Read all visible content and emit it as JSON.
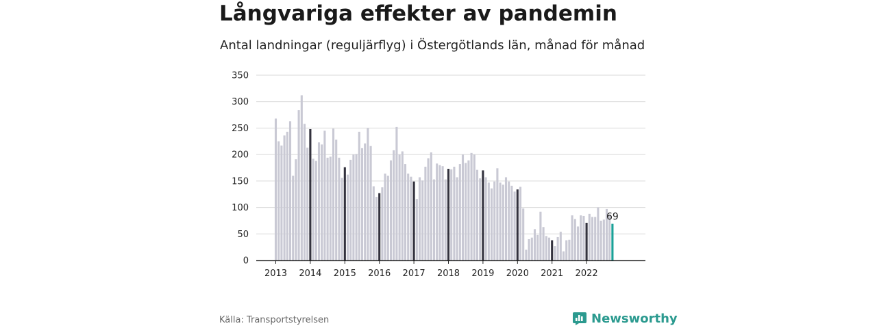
{
  "title": "Långvariga effekter av pandemin",
  "subtitle": "Antal landningar (reguljärflyg) i Östergötlands län, månad för månad",
  "source": "Källa: Transportstyrelsen",
  "brand": "Newsworthy",
  "colors": {
    "bar": "#c9c9d4",
    "january": "#33323e",
    "highlight": "#1aa198",
    "grid": "#d9d9d9",
    "brand": "#2b9a8f"
  },
  "chart_data": {
    "type": "bar",
    "ylim": [
      0,
      350
    ],
    "yticks": [
      0,
      50,
      100,
      150,
      200,
      250,
      300,
      350
    ],
    "xticks": [
      "2013",
      "2014",
      "2015",
      "2016",
      "2017",
      "2018",
      "2019",
      "2020",
      "2021",
      "2022"
    ],
    "start": "2013-01",
    "dark_bars": "january",
    "highlight_last": true,
    "last_label": "69",
    "values": [
      268,
      225,
      217,
      236,
      243,
      263,
      160,
      191,
      284,
      312,
      258,
      213,
      248,
      192,
      188,
      223,
      219,
      245,
      194,
      196,
      249,
      228,
      194,
      156,
      176,
      162,
      190,
      200,
      201,
      243,
      212,
      221,
      250,
      216,
      140,
      120,
      127,
      138,
      164,
      160,
      189,
      208,
      252,
      200,
      206,
      182,
      164,
      158,
      149,
      116,
      157,
      151,
      177,
      193,
      204,
      153,
      183,
      180,
      178,
      153,
      173,
      172,
      177,
      157,
      182,
      200,
      184,
      189,
      203,
      200,
      171,
      155,
      170,
      157,
      147,
      136,
      149,
      174,
      147,
      143,
      157,
      149,
      141,
      130,
      134,
      139,
      98,
      20,
      40,
      43,
      59,
      48,
      92,
      63,
      46,
      43,
      38,
      27,
      44,
      54,
      17,
      38,
      39,
      85,
      78,
      64,
      85,
      84,
      71,
      88,
      82,
      82,
      100,
      75,
      77,
      97,
      85,
      69
    ]
  }
}
